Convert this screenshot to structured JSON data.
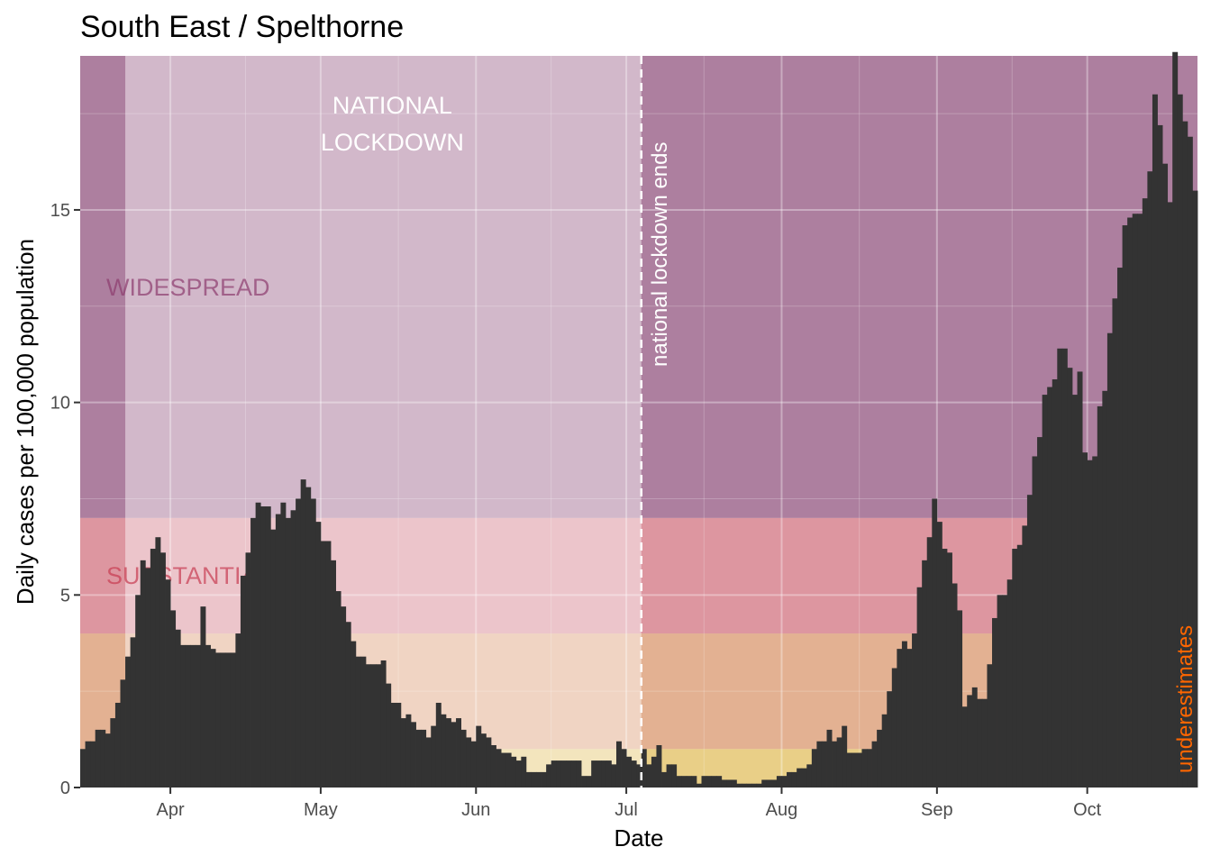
{
  "chart_data": {
    "type": "bar",
    "title": "South East / Spelthorne",
    "xlabel": "Date",
    "ylabel": "Daily cases per 100,000 population",
    "x_start": "2020-03-14",
    "x_ticks": [
      {
        "label": "Apr",
        "date": "2020-04-01"
      },
      {
        "label": "May",
        "date": "2020-05-01"
      },
      {
        "label": "Jun",
        "date": "2020-06-01"
      },
      {
        "label": "Jul",
        "date": "2020-07-01"
      },
      {
        "label": "Aug",
        "date": "2020-08-01"
      },
      {
        "label": "Sep",
        "date": "2020-09-01"
      },
      {
        "label": "Oct",
        "date": "2020-10-01"
      }
    ],
    "y_ticks": [
      0,
      5,
      10,
      15
    ],
    "ylim": [
      0,
      19
    ],
    "grid": true,
    "bands": [
      {
        "label": "",
        "from": 0,
        "to": 1,
        "color": "#e8c76a"
      },
      {
        "label": "",
        "from": 1,
        "to": 4,
        "color": "#e0a079"
      },
      {
        "label": "SUBSTANTIAL",
        "from": 4,
        "to": 7,
        "color": "#d87d8a"
      },
      {
        "label": "WIDESPREAD",
        "from": 7,
        "to": 19,
        "color": "#9b6089"
      }
    ],
    "regions": [
      {
        "label": "NATIONAL LOCKDOWN",
        "from": "2020-03-23",
        "to": "2020-07-04",
        "color": "#ffffff",
        "opacity": 0.45
      }
    ],
    "events": [
      {
        "label": "national lockdown ends",
        "date": "2020-07-04"
      }
    ],
    "corner_note": "underestimates",
    "colors": {
      "bars": "#333333",
      "note": "#ff6600",
      "widespread_text": "#8b3a6e",
      "substantial_text": "#c83a50"
    },
    "values": [
      1.0,
      1.2,
      1.2,
      1.5,
      1.5,
      1.4,
      1.8,
      2.2,
      2.8,
      3.4,
      3.9,
      5.0,
      5.9,
      5.7,
      6.2,
      6.5,
      6.1,
      5.4,
      4.6,
      4.1,
      3.7,
      3.7,
      3.7,
      3.7,
      4.7,
      3.7,
      3.6,
      3.5,
      3.5,
      3.5,
      3.5,
      4.0,
      5.5,
      6.1,
      7.0,
      7.4,
      7.3,
      7.3,
      6.7,
      7.1,
      7.4,
      7.0,
      7.2,
      7.5,
      8.0,
      7.8,
      7.5,
      6.9,
      6.4,
      6.4,
      5.9,
      5.1,
      4.7,
      4.3,
      3.8,
      3.4,
      3.4,
      3.2,
      3.2,
      3.2,
      3.3,
      2.7,
      2.2,
      2.2,
      1.8,
      1.9,
      1.7,
      1.5,
      1.5,
      1.3,
      1.6,
      2.2,
      1.9,
      1.8,
      1.7,
      1.8,
      1.5,
      1.3,
      1.2,
      1.6,
      1.4,
      1.3,
      1.1,
      1.0,
      0.9,
      0.9,
      0.8,
      0.7,
      0.8,
      0.4,
      0.4,
      0.4,
      0.4,
      0.6,
      0.7,
      0.7,
      0.7,
      0.7,
      0.7,
      0.7,
      0.3,
      0.3,
      0.7,
      0.7,
      0.7,
      0.7,
      0.6,
      1.2,
      1.0,
      0.8,
      0.7,
      0.6,
      1.0,
      0.6,
      0.8,
      1.1,
      0.4,
      0.6,
      0.6,
      0.3,
      0.3,
      0.3,
      0.3,
      0.1,
      0.3,
      0.3,
      0.3,
      0.3,
      0.2,
      0.2,
      0.2,
      0.1,
      0.1,
      0.1,
      0.1,
      0.1,
      0.2,
      0.2,
      0.2,
      0.3,
      0.3,
      0.4,
      0.4,
      0.5,
      0.5,
      0.6,
      1.0,
      1.2,
      1.2,
      1.5,
      1.2,
      1.3,
      1.6,
      0.9,
      0.9,
      0.9,
      1.0,
      1.0,
      1.2,
      1.5,
      1.9,
      2.5,
      3.1,
      3.6,
      3.8,
      3.6,
      4.0,
      5.2,
      5.9,
      6.5,
      7.5,
      6.9,
      6.2,
      6.1,
      5.3,
      4.6,
      2.1,
      2.4,
      2.6,
      2.3,
      2.3,
      3.2,
      4.4,
      5.0,
      5.0,
      5.4,
      6.2,
      6.3,
      6.8,
      7.6,
      8.6,
      9.1,
      10.2,
      10.4,
      10.6,
      11.4,
      11.4,
      10.9,
      10.2,
      10.8,
      8.7,
      8.5,
      8.6,
      9.9,
      10.3,
      11.8,
      12.7,
      13.5,
      14.6,
      14.8,
      14.9,
      14.9,
      15.3,
      16.0,
      18.0,
      17.2,
      16.2,
      15.2,
      19.1,
      18.0,
      17.3,
      16.9,
      15.5
    ],
    "values_note": ""
  }
}
